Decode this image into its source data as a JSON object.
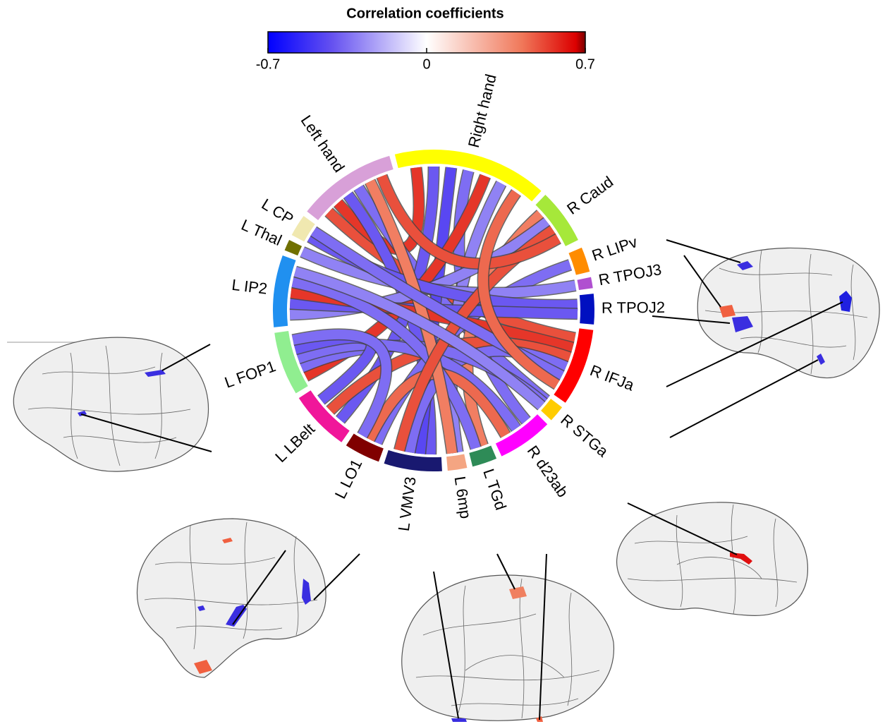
{
  "colorbar": {
    "title": "Correlation coefficients",
    "lim": [
      -0.7,
      0.7
    ],
    "ticks": [
      -0.7,
      0,
      0.7
    ]
  },
  "nodes": [
    {
      "label": "Right hand",
      "color": "#ffff00"
    },
    {
      "label": "R Caud",
      "color": "#a6e83a"
    },
    {
      "label": "R LIPv",
      "color": "#ff8c00"
    },
    {
      "label": "R TPOJ3",
      "color": "#b050d0"
    },
    {
      "label": "R TPOJ2",
      "color": "#0010c0"
    },
    {
      "label": "R IFJa",
      "color": "#ff0000"
    },
    {
      "label": "R STGa",
      "color": "#ffcc00"
    },
    {
      "label": "R d23ab",
      "color": "#ff00ff"
    },
    {
      "label": "L TGd",
      "color": "#2e8b57"
    },
    {
      "label": "L 6mp",
      "color": "#f4a582"
    },
    {
      "label": "L VMV3",
      "color": "#191970"
    },
    {
      "label": "L LO1",
      "color": "#800000"
    },
    {
      "label": "L LBelt",
      "color": "#f0169a"
    },
    {
      "label": "L FOP1",
      "color": "#90ee90"
    },
    {
      "label": "L IP2",
      "color": "#2090f0"
    },
    {
      "label": "L Thal",
      "color": "#707000"
    },
    {
      "label": "L CP",
      "color": "#f0e8b0"
    },
    {
      "label": "Left hand",
      "color": "#d8a0d8"
    }
  ],
  "chords": [
    {
      "from": "Left hand",
      "to": "R IFJa",
      "value": 0.5
    },
    {
      "from": "Left hand",
      "to": "Right hand",
      "value": 0.55
    },
    {
      "from": "Left hand",
      "to": "L VMV3",
      "value": -0.4
    },
    {
      "from": "Left hand",
      "to": "R STGa",
      "value": -0.35
    },
    {
      "from": "Right hand",
      "to": "L LBelt",
      "value": -0.4
    },
    {
      "from": "Right hand",
      "to": "L VMV3",
      "value": -0.45
    },
    {
      "from": "Right hand",
      "to": "R d23ab",
      "value": -0.35
    },
    {
      "from": "Right hand",
      "to": "L FOP1",
      "value": 0.55
    },
    {
      "from": "Right hand",
      "to": "L 6mp",
      "value": -0.3
    },
    {
      "from": "R Caud",
      "to": "L TGd",
      "value": 0.4
    },
    {
      "from": "R Caud",
      "to": "L IP2",
      "value": -0.3
    },
    {
      "from": "R LIPv",
      "to": "L LO1",
      "value": -0.35
    },
    {
      "from": "R TPOJ3",
      "to": "L Thal",
      "value": -0.3
    },
    {
      "from": "R TPOJ2",
      "to": "L CP",
      "value": -0.4
    },
    {
      "from": "R TPOJ2",
      "to": "L IP2",
      "value": -0.4
    },
    {
      "from": "R IFJa",
      "to": "L IP2",
      "value": 0.55
    },
    {
      "from": "R IFJa",
      "to": "L LBelt",
      "value": 0.5
    },
    {
      "from": "R IFJa",
      "to": "L VMV3",
      "value": -0.35
    },
    {
      "from": "R STGa",
      "to": "L FOP1",
      "value": -0.35
    },
    {
      "from": "R d23ab",
      "to": "L FOP1",
      "value": -0.35
    },
    {
      "from": "R d23ab",
      "to": "L LO1",
      "value": 0.45
    },
    {
      "from": "L TGd",
      "to": "L IP2",
      "value": -0.35
    },
    {
      "from": "L 6mp",
      "to": "Left hand",
      "value": 0.4
    },
    {
      "from": "L VMV3",
      "to": "R Caud",
      "value": 0.5
    },
    {
      "from": "L LBelt",
      "to": "L FOP1",
      "value": -0.4
    },
    {
      "from": "L CP",
      "to": "R IFJa",
      "value": -0.35
    },
    {
      "from": "Left hand",
      "to": "R Caud",
      "value": 0.5
    },
    {
      "from": "L IP2",
      "to": "R STGa",
      "value": -0.3
    },
    {
      "from": "Right hand",
      "to": "R IFJa",
      "value": 0.45
    },
    {
      "from": "L LO1",
      "to": "L FOP1",
      "value": -0.35
    }
  ]
}
